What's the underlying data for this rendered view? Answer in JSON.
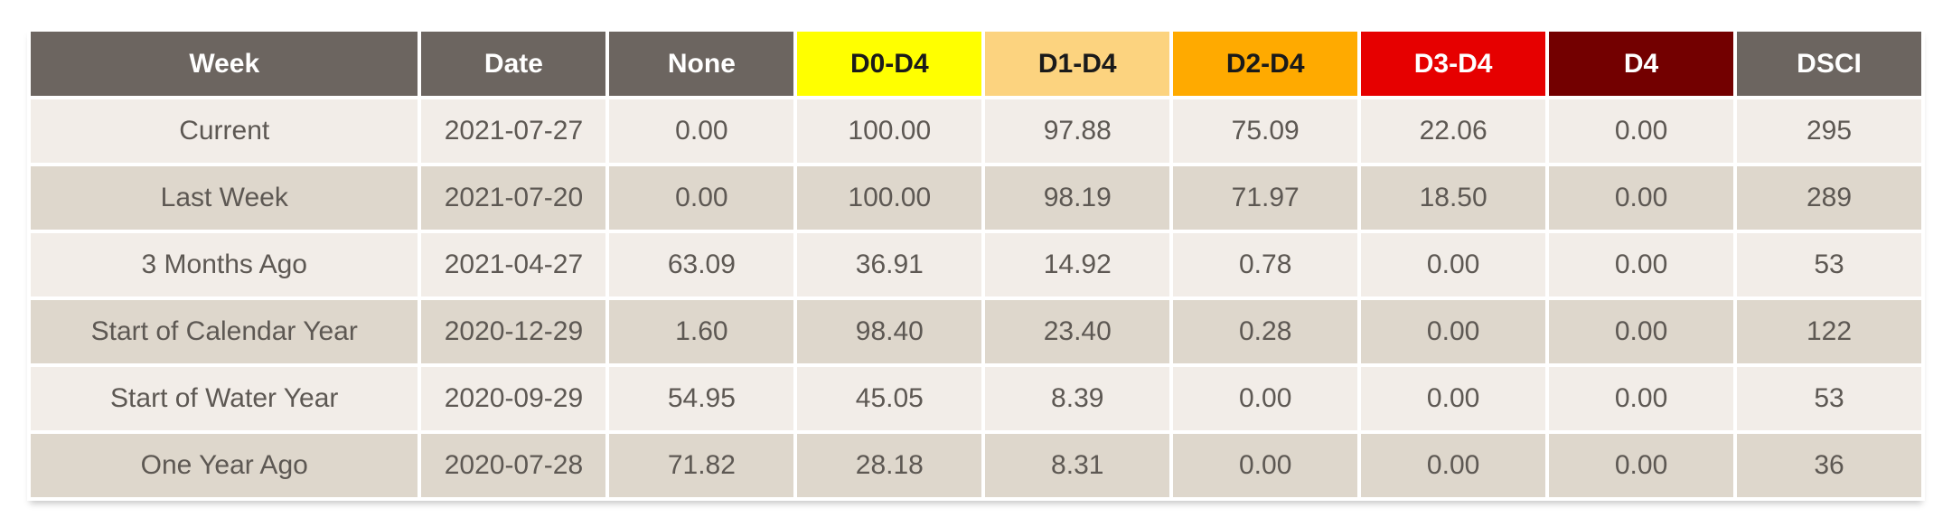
{
  "table": {
    "columns": [
      {
        "key": "week",
        "label": "Week",
        "bg": "#6c6560",
        "fg": "#ffffff"
      },
      {
        "key": "date",
        "label": "Date",
        "bg": "#6c6560",
        "fg": "#ffffff"
      },
      {
        "key": "none",
        "label": "None",
        "bg": "#6c6560",
        "fg": "#ffffff"
      },
      {
        "key": "d0_d4",
        "label": "D0-D4",
        "bg": "#ffff00",
        "fg": "#1a1a1a"
      },
      {
        "key": "d1_d4",
        "label": "D1-D4",
        "bg": "#fcd37f",
        "fg": "#1a1a1a"
      },
      {
        "key": "d2_d4",
        "label": "D2-D4",
        "bg": "#ffaa00",
        "fg": "#1a1a1a"
      },
      {
        "key": "d3_d4",
        "label": "D3-D4",
        "bg": "#e60000",
        "fg": "#ffffff"
      },
      {
        "key": "d4",
        "label": "D4",
        "bg": "#730000",
        "fg": "#ffffff"
      },
      {
        "key": "dsci",
        "label": "DSCI",
        "bg": "#6c6560",
        "fg": "#ffffff"
      }
    ],
    "rows": [
      {
        "week": "Current",
        "date": "2021-07-27",
        "none": "0.00",
        "d0_d4": "100.00",
        "d1_d4": "97.88",
        "d2_d4": "75.09",
        "d3_d4": "22.06",
        "d4": "0.00",
        "dsci": "295"
      },
      {
        "week": "Last Week",
        "date": "2021-07-20",
        "none": "0.00",
        "d0_d4": "100.00",
        "d1_d4": "98.19",
        "d2_d4": "71.97",
        "d3_d4": "18.50",
        "d4": "0.00",
        "dsci": "289"
      },
      {
        "week": "3 Months Ago",
        "date": "2021-04-27",
        "none": "63.09",
        "d0_d4": "36.91",
        "d1_d4": "14.92",
        "d2_d4": "0.78",
        "d3_d4": "0.00",
        "d4": "0.00",
        "dsci": "53"
      },
      {
        "week": "Start of Calendar Year",
        "date": "2020-12-29",
        "none": "1.60",
        "d0_d4": "98.40",
        "d1_d4": "23.40",
        "d2_d4": "0.28",
        "d3_d4": "0.00",
        "d4": "0.00",
        "dsci": "122"
      },
      {
        "week": "Start of Water Year",
        "date": "2020-09-29",
        "none": "54.95",
        "d0_d4": "45.05",
        "d1_d4": "8.39",
        "d2_d4": "0.00",
        "d3_d4": "0.00",
        "d4": "0.00",
        "dsci": "53"
      },
      {
        "week": "One Year Ago",
        "date": "2020-07-28",
        "none": "71.82",
        "d0_d4": "28.18",
        "d1_d4": "8.31",
        "d2_d4": "0.00",
        "d3_d4": "0.00",
        "d4": "0.00",
        "dsci": "36"
      }
    ]
  },
  "colors": {
    "header_gray": "#6c6560",
    "row_light": "#f2ede8",
    "row_dark": "#ded7cc",
    "cell_text": "#5d5853",
    "date_link": "#e1701e",
    "d0_yellow": "#ffff00",
    "d1_tan": "#fcd37f",
    "d2_orange": "#ffaa00",
    "d3_red": "#e60000",
    "d4_dark_red": "#730000"
  }
}
